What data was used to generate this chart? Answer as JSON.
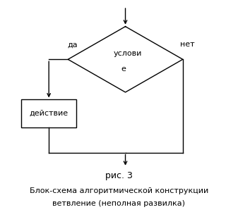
{
  "title_line1": "рис. 3",
  "title_line2": "Блок-схема алгоритмической конструкции",
  "title_line3": "ветвление (неполная развилка)",
  "diamond_label_line1": "услови",
  "diamond_label_line2": "е",
  "yes_label": "да",
  "no_label": "нет",
  "action_label": "действие",
  "bg_color": "#ffffff",
  "line_color": "#000000",
  "font_color": "#000000",
  "font_size": 8,
  "title_font_size": 8
}
